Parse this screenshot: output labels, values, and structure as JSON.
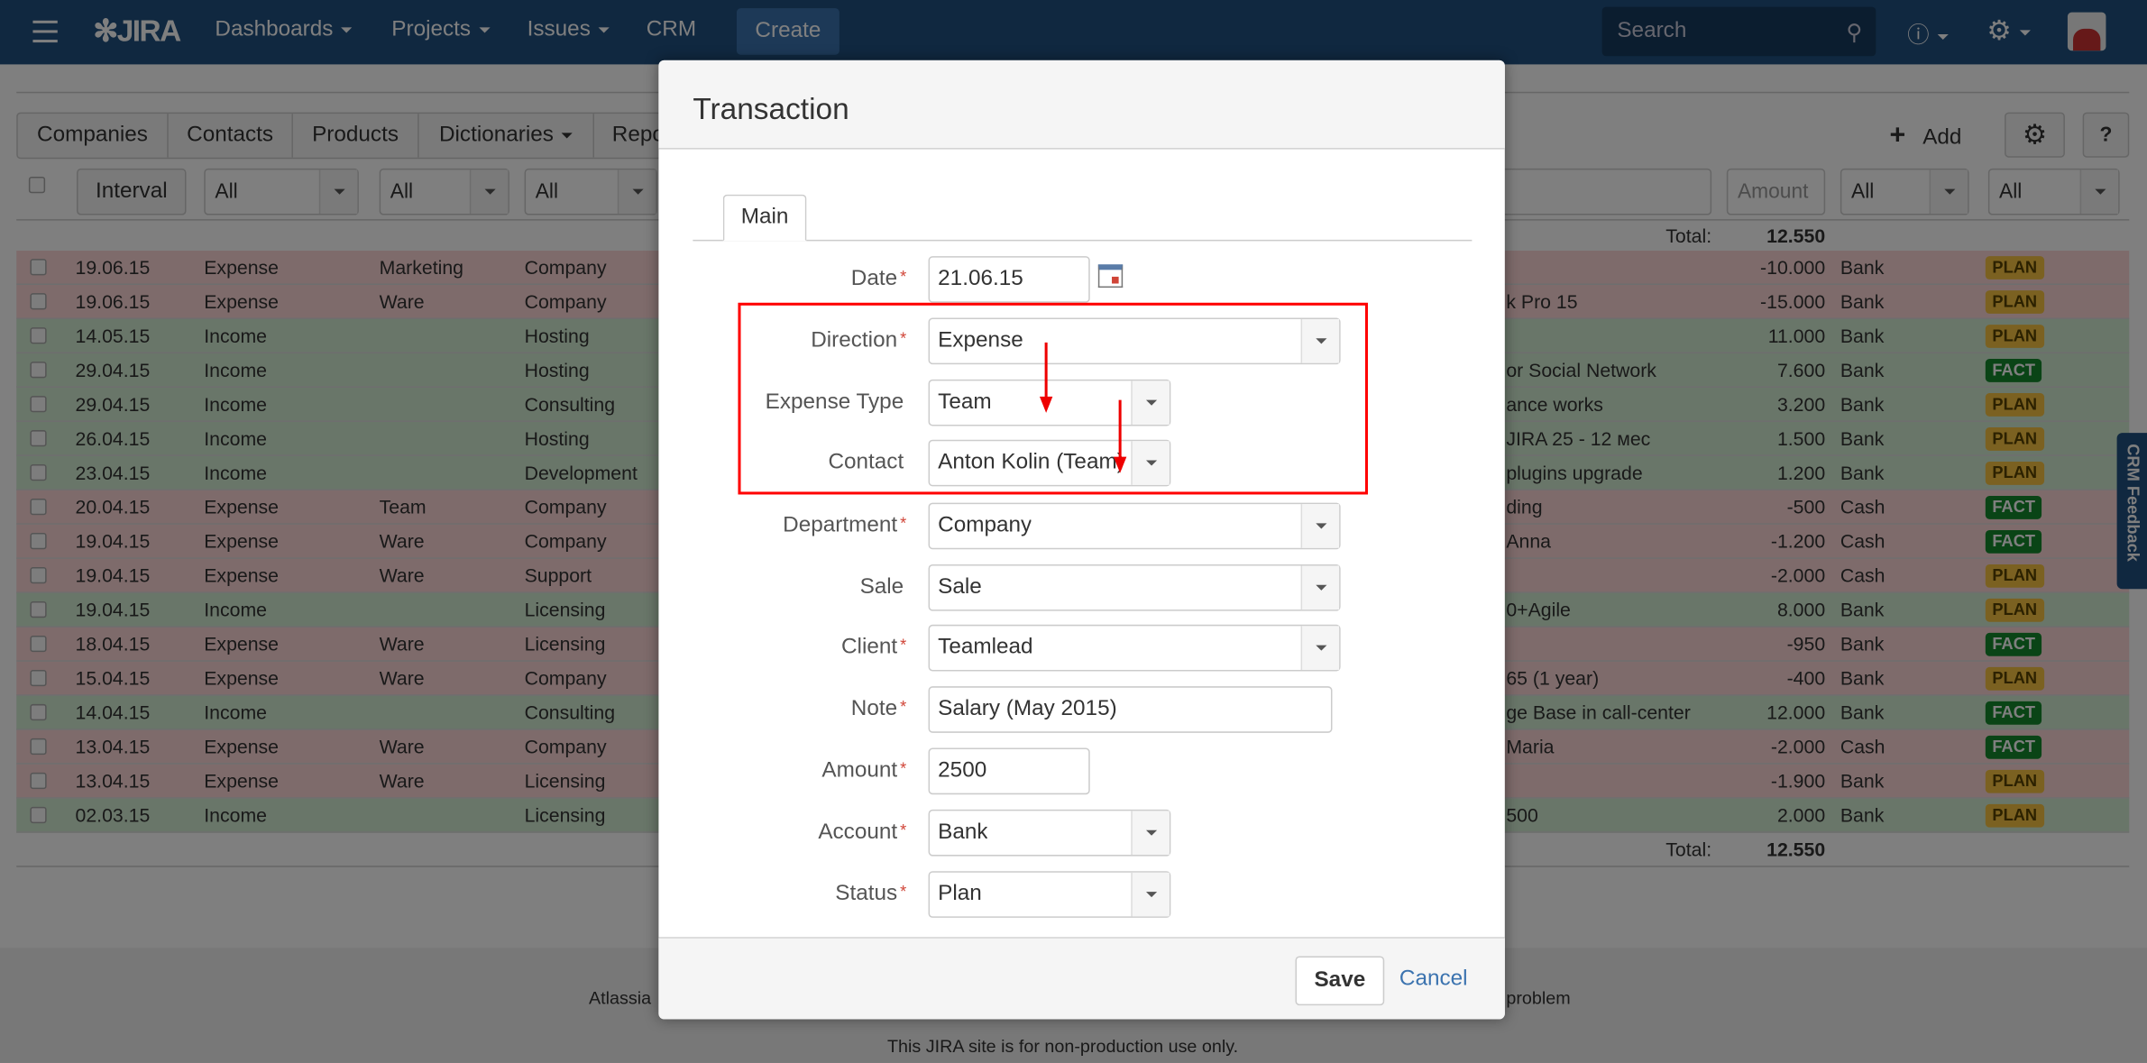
{
  "nav": {
    "logo": "JIRA",
    "items": [
      {
        "label": "Dashboards",
        "caret": true
      },
      {
        "label": "Projects",
        "caret": true
      },
      {
        "label": "Issues",
        "caret": true
      },
      {
        "label": "CRM",
        "caret": false
      }
    ],
    "create": "Create",
    "search_placeholder": "Search",
    "accent": "#205081"
  },
  "tabs": [
    {
      "label": "Companies"
    },
    {
      "label": "Contacts"
    },
    {
      "label": "Products"
    },
    {
      "label": "Dictionaries",
      "caret": true
    },
    {
      "label": "Repo"
    }
  ],
  "toolbar": {
    "add": "Add",
    "help": "?"
  },
  "filters": {
    "interval": "Interval",
    "sel1": "All",
    "sel2": "All",
    "sel3": "All",
    "amount_placeholder": "Amount",
    "sel4": "All",
    "sel5": "All"
  },
  "totals": {
    "label": "Total:",
    "value": "12.550"
  },
  "rows": [
    {
      "date": "19.06.15",
      "type": "Expense",
      "cat": "Marketing",
      "dept": "Company",
      "desc": "",
      "amount": "-10.000",
      "account": "Bank",
      "status": "PLAN"
    },
    {
      "date": "19.06.15",
      "type": "Expense",
      "cat": "Ware",
      "dept": "Company",
      "desc": "k Pro 15",
      "amount": "-15.000",
      "account": "Bank",
      "status": "PLAN"
    },
    {
      "date": "14.05.15",
      "type": "Income",
      "cat": "",
      "dept": "Hosting",
      "desc": "",
      "amount": "11.000",
      "account": "Bank",
      "status": "PLAN"
    },
    {
      "date": "29.04.15",
      "type": "Income",
      "cat": "",
      "dept": "Hosting",
      "desc": "or Social Network",
      "amount": "7.600",
      "account": "Bank",
      "status": "FACT"
    },
    {
      "date": "29.04.15",
      "type": "Income",
      "cat": "",
      "dept": "Consulting",
      "desc": "ance works",
      "amount": "3.200",
      "account": "Bank",
      "status": "PLAN"
    },
    {
      "date": "26.04.15",
      "type": "Income",
      "cat": "",
      "dept": "Hosting",
      "desc": "JIRA 25 - 12 мес",
      "amount": "1.500",
      "account": "Bank",
      "status": "PLAN"
    },
    {
      "date": "23.04.15",
      "type": "Income",
      "cat": "",
      "dept": "Development",
      "desc": "plugins upgrade",
      "amount": "1.200",
      "account": "Bank",
      "status": "PLAN"
    },
    {
      "date": "20.04.15",
      "type": "Expense",
      "cat": "Team",
      "dept": "Company",
      "desc": "ding",
      "amount": "-500",
      "account": "Cash",
      "status": "FACT"
    },
    {
      "date": "19.04.15",
      "type": "Expense",
      "cat": "Ware",
      "dept": "Company",
      "desc": "Anna",
      "amount": "-1.200",
      "account": "Cash",
      "status": "FACT"
    },
    {
      "date": "19.04.15",
      "type": "Expense",
      "cat": "Ware",
      "dept": "Support",
      "desc": "",
      "amount": "-2.000",
      "account": "Cash",
      "status": "PLAN"
    },
    {
      "date": "19.04.15",
      "type": "Income",
      "cat": "",
      "dept": "Licensing",
      "desc": "0+Agile",
      "amount": "8.000",
      "account": "Bank",
      "status": "PLAN"
    },
    {
      "date": "18.04.15",
      "type": "Expense",
      "cat": "Ware",
      "dept": "Licensing",
      "desc": "",
      "amount": "-950",
      "account": "Bank",
      "status": "FACT"
    },
    {
      "date": "15.04.15",
      "type": "Expense",
      "cat": "Ware",
      "dept": "Company",
      "desc": "65 (1 year)",
      "amount": "-400",
      "account": "Bank",
      "status": "PLAN"
    },
    {
      "date": "14.04.15",
      "type": "Income",
      "cat": "",
      "dept": "Consulting",
      "desc": "ge Base in call-center",
      "amount": "12.000",
      "account": "Bank",
      "status": "FACT"
    },
    {
      "date": "13.04.15",
      "type": "Expense",
      "cat": "Ware",
      "dept": "Company",
      "desc": "Maria",
      "amount": "-2.000",
      "account": "Cash",
      "status": "FACT"
    },
    {
      "date": "13.04.15",
      "type": "Expense",
      "cat": "Ware",
      "dept": "Licensing",
      "desc": "",
      "amount": "-1.900",
      "account": "Bank",
      "status": "PLAN"
    },
    {
      "date": "02.03.15",
      "type": "Income",
      "cat": "",
      "dept": "Licensing",
      "desc": "500",
      "amount": "2.000",
      "account": "Bank",
      "status": "PLAN"
    }
  ],
  "colors": {
    "expense_row": "#fcd6d6",
    "income_row": "#d2ecd2",
    "plan_bg": "#f6c342",
    "plan_fg": "#594300",
    "fact_bg": "#14892c",
    "fact_fg": "#ffffff"
  },
  "footer": {
    "left": "Atlassia",
    "right": "problem",
    "note": "This JIRA site is for non-production use only."
  },
  "feedback": "CRM Feedback",
  "dialog": {
    "title": "Transaction",
    "tab": "Main",
    "fields": {
      "date": {
        "label": "Date",
        "value": "21.06.15"
      },
      "direction": {
        "label": "Direction",
        "value": "Expense"
      },
      "expense_type": {
        "label": "Expense Type",
        "value": "Team"
      },
      "contact": {
        "label": "Contact",
        "value": "Anton Kolin (Team)"
      },
      "department": {
        "label": "Department",
        "value": "Company"
      },
      "sale": {
        "label": "Sale",
        "value": "Sale"
      },
      "client": {
        "label": "Client",
        "value": "Teamlead"
      },
      "note": {
        "label": "Note",
        "value": "Salary (May 2015)"
      },
      "amount": {
        "label": "Amount",
        "value": "2500"
      },
      "account": {
        "label": "Account",
        "value": "Bank"
      },
      "status": {
        "label": "Status",
        "value": "Plan"
      }
    },
    "required": "*",
    "save": "Save",
    "cancel": "Cancel",
    "highlight_color": "#ff0000"
  }
}
